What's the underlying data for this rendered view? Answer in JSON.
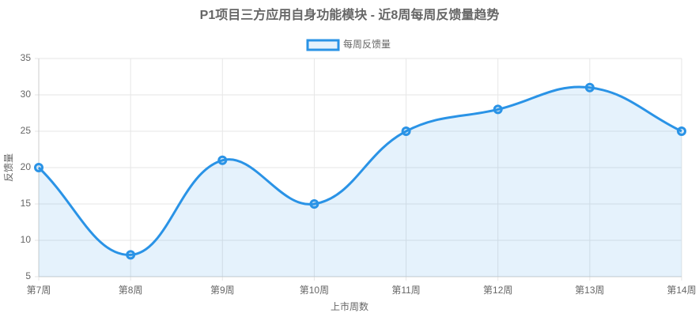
{
  "chart_data": {
    "type": "line",
    "title": "P1项目三方应用自身功能模块 - 近8周每周反馈量趋势",
    "x_label": "上市周数",
    "y_label": "反馈量",
    "categories": [
      "第7周",
      "第8周",
      "第9周",
      "第10周",
      "第11周",
      "第12周",
      "第13周",
      "第14周"
    ],
    "series": [
      {
        "name": "每周反馈量",
        "color": "#2a93e6",
        "values": [
          20,
          8,
          21,
          15,
          25,
          28,
          31,
          25
        ]
      }
    ],
    "ylim": [
      5,
      35
    ],
    "yticks": [
      5,
      10,
      15,
      20,
      25,
      30,
      35
    ],
    "grid": true,
    "fill": true,
    "smooth": true,
    "legend": "top"
  }
}
